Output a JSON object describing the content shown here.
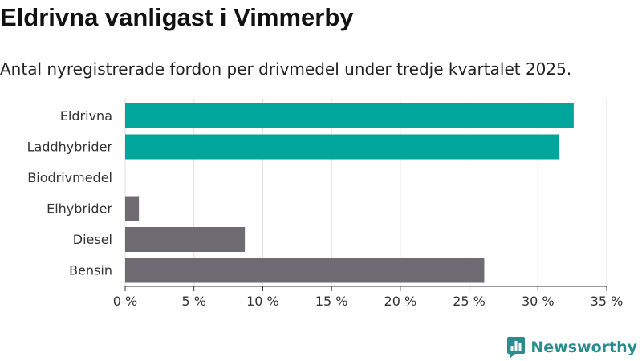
{
  "title": "Eldrivna vanligast i Vimmerby",
  "subtitle": "Antal nyregistrerade fordon per drivmedel under tredje kvartalet 2025.",
  "brand": {
    "name": "Newsworthy",
    "color": "#2a8c8f"
  },
  "colors": {
    "highlight": "#00a59b",
    "base": "#6e6c72",
    "grid": "#dddddd"
  },
  "chart_data": {
    "type": "bar",
    "orientation": "horizontal",
    "categories": [
      "Eldrivna",
      "Laddhybrider",
      "Biodrivmedel",
      "Elhybrider",
      "Diesel",
      "Bensin"
    ],
    "values": [
      32.6,
      31.5,
      0,
      1.0,
      8.7,
      26.1
    ],
    "highlighted": [
      true,
      true,
      false,
      false,
      false,
      false
    ],
    "xlim": [
      0,
      35
    ],
    "xticks": [
      0,
      5,
      10,
      15,
      20,
      25,
      30,
      35
    ],
    "tick_labels": [
      "0 %",
      "5 %",
      "10 %",
      "15 %",
      "20 %",
      "25 %",
      "30 %",
      "35 %"
    ],
    "xlabel": "",
    "ylabel": "",
    "grid": true,
    "legend": "none"
  }
}
